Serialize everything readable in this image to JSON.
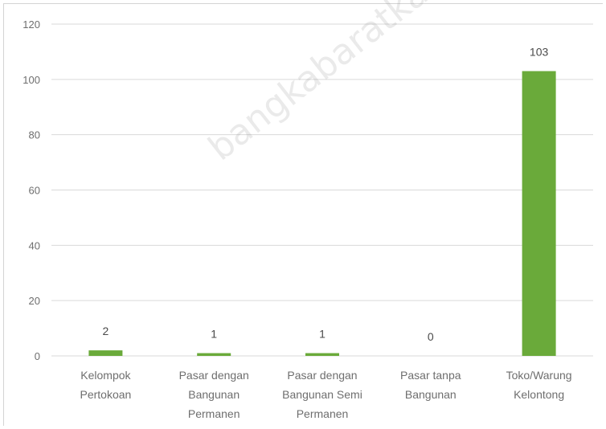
{
  "colors": {
    "bar": "#6aaa3a",
    "grid": "#d9d9d9",
    "text": "#6e6e6e"
  },
  "watermark": "bangkabaratkab.bps.go.id",
  "chart_data": {
    "type": "bar",
    "title": "",
    "xlabel": "",
    "ylabel": "",
    "ylim": [
      0,
      120
    ],
    "yticks": [
      0,
      20,
      40,
      60,
      80,
      100,
      120
    ],
    "grid": true,
    "categories": [
      [
        "Kelompok",
        "Pertokoan"
      ],
      [
        "Pasar dengan",
        "Bangunan",
        "Permanen"
      ],
      [
        "Pasar dengan",
        "Bangunan Semi",
        "Permanen"
      ],
      [
        "Pasar tanpa",
        "Bangunan"
      ],
      [
        "Toko/Warung",
        "Kelontong"
      ]
    ],
    "values": [
      2,
      1,
      1,
      0,
      103
    ]
  }
}
